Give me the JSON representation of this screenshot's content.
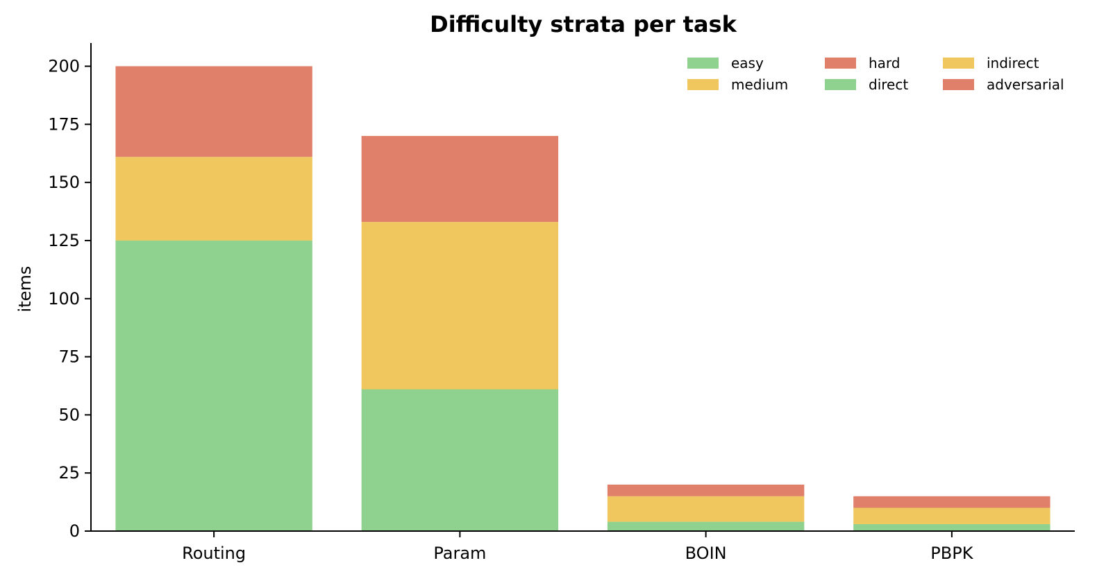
{
  "chart_data": {
    "type": "bar",
    "stacked": true,
    "title": "Difficulty strata per task",
    "xlabel": "",
    "ylabel": "items",
    "ylim": [
      0,
      210
    ],
    "yticks": [
      0,
      25,
      50,
      75,
      100,
      125,
      150,
      175,
      200
    ],
    "categories": [
      "Routing",
      "Param",
      "BOIN",
      "PBPK"
    ],
    "series": [
      {
        "name": "easy",
        "color": "#8fd18f",
        "values": [
          125,
          61,
          0,
          0
        ]
      },
      {
        "name": "medium",
        "color": "#efc75e",
        "values": [
          36,
          72,
          0,
          0
        ]
      },
      {
        "name": "hard",
        "color": "#e07f6a",
        "values": [
          39,
          37,
          0,
          0
        ]
      },
      {
        "name": "direct",
        "color": "#8fd18f",
        "values": [
          0,
          0,
          4,
          3
        ]
      },
      {
        "name": "indirect",
        "color": "#efc75e",
        "values": [
          0,
          0,
          11,
          7
        ]
      },
      {
        "name": "adversarial",
        "color": "#e07f6a",
        "values": [
          0,
          0,
          5,
          5
        ]
      }
    ],
    "legend": {
      "placement": "top-right",
      "columns": [
        [
          "easy",
          "medium"
        ],
        [
          "hard",
          "direct"
        ],
        [
          "indirect",
          "adversarial"
        ]
      ]
    },
    "grid": false
  }
}
